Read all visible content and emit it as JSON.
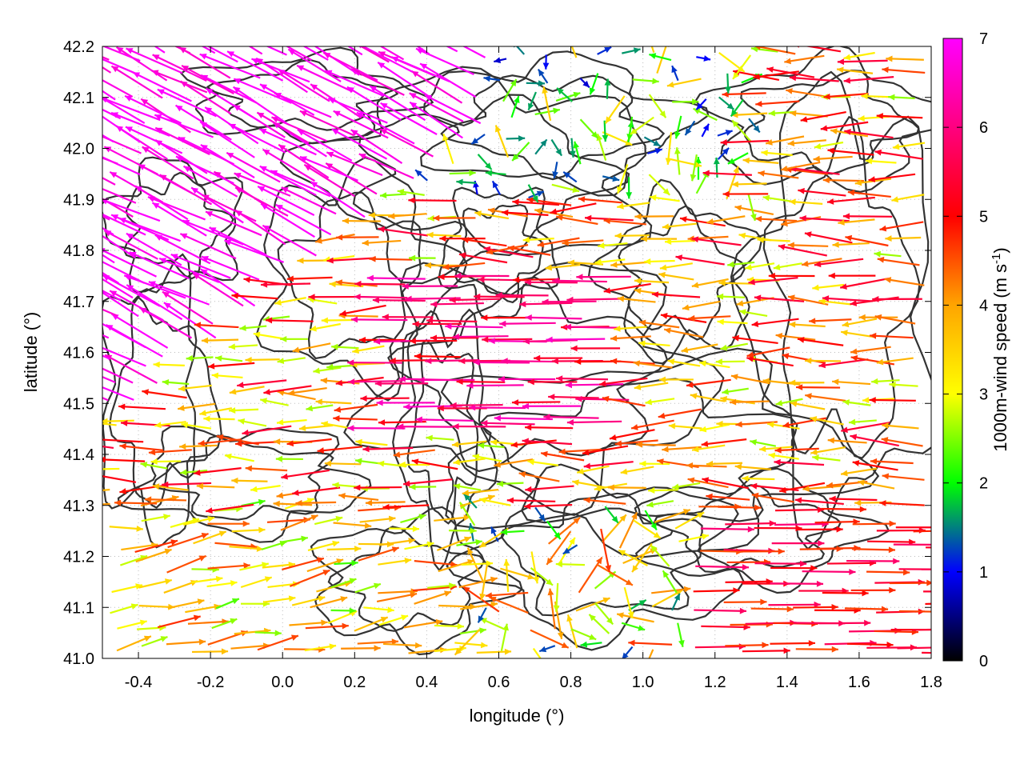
{
  "chart_data": {
    "type": "quiver",
    "xlabel": "longitude (°)",
    "ylabel": "latitude (°)",
    "xlim": [
      -0.5,
      1.8
    ],
    "ylim": [
      41.0,
      42.2
    ],
    "xticks": [
      "-0.4",
      "-0.2",
      "0.0",
      "0.2",
      "0.4",
      "0.6",
      "0.8",
      "1.0",
      "1.2",
      "1.4",
      "1.6",
      "1.8"
    ],
    "xtick_values": [
      -0.4,
      -0.2,
      0.0,
      0.2,
      0.4,
      0.6,
      0.8,
      1.0,
      1.2,
      1.4,
      1.6,
      1.8
    ],
    "yticks": [
      "41.0",
      "41.1",
      "41.2",
      "41.3",
      "41.4",
      "41.5",
      "41.6",
      "41.7",
      "41.8",
      "41.9",
      "42.0",
      "42.1",
      "42.2"
    ],
    "ytick_values": [
      41.0,
      41.1,
      41.2,
      41.3,
      41.4,
      41.5,
      41.6,
      41.7,
      41.8,
      41.9,
      42.0,
      42.1,
      42.2
    ],
    "grid": true,
    "colorbar": {
      "label_main": "1000m-wind speed (m s",
      "label_sup": "-1",
      "label_end": ")",
      "ticks": [
        "0",
        "1",
        "2",
        "3",
        "4",
        "5",
        "6",
        "7"
      ],
      "tick_values": [
        0,
        1,
        2,
        3,
        4,
        5,
        6,
        7
      ],
      "range": [
        0,
        7
      ],
      "colors": [
        "#000000",
        "#0000ff",
        "#00ff00",
        "#ffff00",
        "#ffa500",
        "#ff0000",
        "#ff00ff"
      ]
    },
    "contour_color": "#333333",
    "wind_regions": [
      {
        "region": "northwest",
        "lon": [
          -0.5,
          0.5
        ],
        "lat": [
          41.7,
          42.2
        ],
        "speed": 7.0,
        "direction": "toward west-northwest"
      },
      {
        "region": "central band",
        "lon": [
          -0.2,
          0.8
        ],
        "lat": [
          41.4,
          41.7
        ],
        "speed": 6.5,
        "direction": "toward west-northwest"
      },
      {
        "region": "east-central",
        "lon": [
          0.6,
          1.8
        ],
        "lat": [
          41.4,
          41.9
        ],
        "speed": 4.5,
        "direction": "toward west"
      },
      {
        "region": "north-central",
        "lon": [
          0.3,
          1.2
        ],
        "lat": [
          41.9,
          42.2
        ],
        "speed": 2.0,
        "direction": "variable"
      },
      {
        "region": "southwest",
        "lon": [
          -0.5,
          0.4
        ],
        "lat": [
          41.0,
          41.3
        ],
        "speed": 3.5,
        "direction": "toward east"
      },
      {
        "region": "southeast",
        "lon": [
          1.1,
          1.8
        ],
        "lat": [
          41.0,
          41.3
        ],
        "speed": 5.5,
        "direction": "toward east"
      }
    ]
  }
}
